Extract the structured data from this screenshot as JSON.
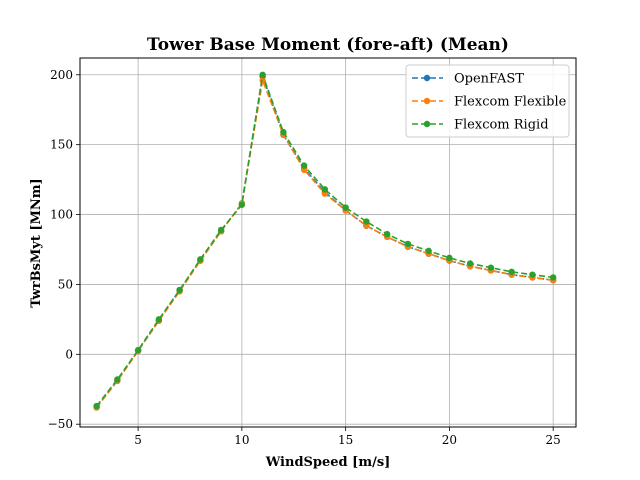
{
  "chart_data": {
    "type": "line",
    "title": "Tower Base Moment (fore-aft) (Mean)",
    "xlabel": "WindSpeed [m/s]",
    "ylabel": "TwrBsMyt [MNm]",
    "xlim": [
      2.2,
      26.1
    ],
    "ylim": [
      -52,
      212
    ],
    "xticks": [
      5,
      10,
      15,
      20,
      25
    ],
    "yticks": [
      -50,
      0,
      50,
      100,
      150,
      200
    ],
    "grid": true,
    "legend_position": "top-right",
    "x": [
      3,
      4,
      5,
      6,
      7,
      8,
      9,
      10,
      11,
      12,
      13,
      14,
      15,
      16,
      17,
      18,
      19,
      20,
      21,
      22,
      23,
      24,
      25
    ],
    "series": [
      {
        "name": "OpenFAST",
        "color": "#1f77b4",
        "values": [
          -38,
          -19,
          2.5,
          24,
          46,
          67,
          88,
          108,
          199,
          157,
          133,
          116,
          103,
          92,
          84,
          77,
          72,
          67,
          63,
          60,
          57,
          55,
          53
        ]
      },
      {
        "name": "Flexcom Flexible",
        "color": "#ff7f0e",
        "values": [
          -38,
          -19,
          2.5,
          24,
          45,
          67,
          88,
          108,
          196,
          157,
          132,
          115,
          103,
          92,
          84,
          77,
          72,
          67,
          63,
          60,
          57,
          55,
          53
        ]
      },
      {
        "name": "Flexcom Rigid",
        "color": "#2ca02c",
        "values": [
          -37,
          -18,
          3,
          25,
          46,
          68,
          89,
          107,
          200,
          159,
          135,
          118,
          105,
          95,
          86,
          79,
          74,
          69,
          65,
          62,
          59,
          57,
          55
        ]
      }
    ]
  }
}
